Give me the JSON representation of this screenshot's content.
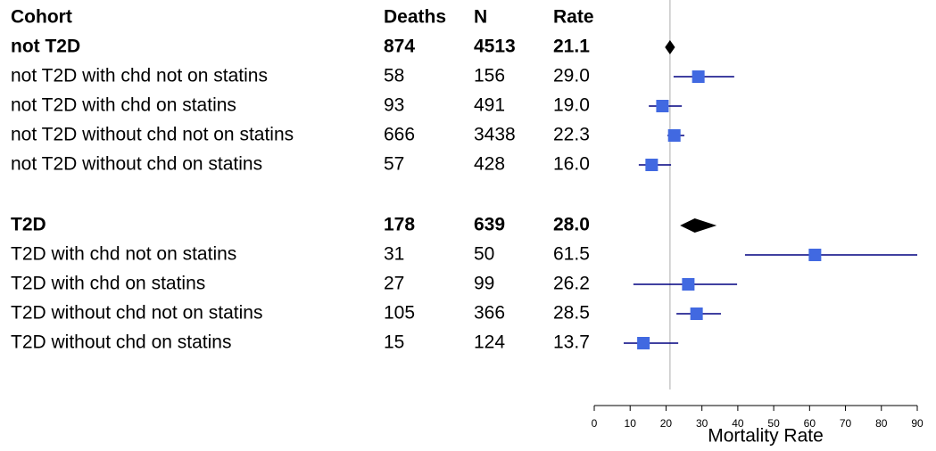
{
  "chart_data": {
    "type": "forest",
    "headers": {
      "cohort": "Cohort",
      "deaths": "Deaths",
      "n": "N",
      "rate": "Rate"
    },
    "rows": [
      {
        "label": "not T2D",
        "deaths": 874,
        "n": 4513,
        "rate": 21.1,
        "lower": 19.7,
        "upper": 22.5,
        "summary": true
      },
      {
        "label": "not T2D with chd not on statins",
        "deaths": 58,
        "n": 156,
        "rate": 29.0,
        "rate_label": "29.0",
        "lower": 22.1,
        "upper": 39.0
      },
      {
        "label": "not T2D with chd on statins",
        "deaths": 93,
        "n": 491,
        "rate": 19.0,
        "rate_label": "19.0",
        "lower": 15.2,
        "upper": 24.4
      },
      {
        "label": "not T2D without chd not on statins",
        "deaths": 666,
        "n": 3438,
        "rate": 22.3,
        "lower": 20.4,
        "upper": 25.1
      },
      {
        "label": "not T2D without chd on statins",
        "deaths": 57,
        "n": 428,
        "rate": 16.0,
        "rate_label": "16.0",
        "lower": 12.4,
        "upper": 21.4
      },
      {
        "label": "T2D",
        "deaths": 178,
        "n": 639,
        "rate": 28.0,
        "rate_label": "28.0",
        "lower": 23.9,
        "upper": 34.1,
        "summary": true
      },
      {
        "label": "T2D with chd not on statins",
        "deaths": 31,
        "n": 50,
        "rate": 61.5,
        "lower": 42.0,
        "upper": 90
      },
      {
        "label": "T2D with chd on statins",
        "deaths": 27,
        "n": 99,
        "rate": 26.2,
        "lower": 10.9,
        "upper": 39.8
      },
      {
        "label": "T2D without chd not on statins",
        "deaths": 105,
        "n": 366,
        "rate": 28.5,
        "lower": 22.9,
        "upper": 35.3
      },
      {
        "label": "T2D without chd on statins",
        "deaths": 15,
        "n": 124,
        "rate": 13.7,
        "lower": 8.2,
        "upper": 23.4
      }
    ],
    "xlim": [
      0,
      90
    ],
    "xticks": [
      0,
      10,
      20,
      30,
      40,
      50,
      60,
      70,
      80,
      90
    ],
    "xlabel": "Mortality Rate",
    "reference": 21.1,
    "color": "#4169e1",
    "line_color": "#000080",
    "summary_color": "#000000",
    "reference_color": "#c8c8c8"
  }
}
